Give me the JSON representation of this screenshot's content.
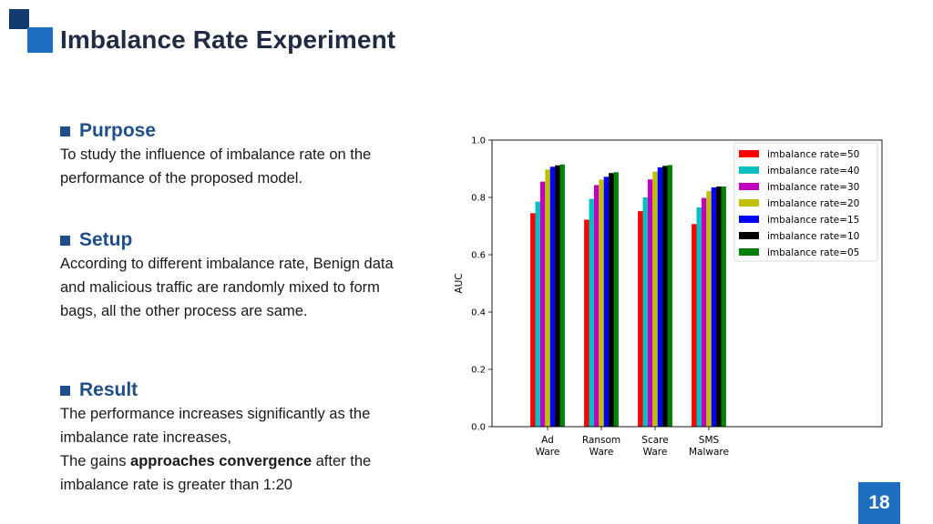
{
  "title": "Imbalance Rate Experiment",
  "sections": [
    {
      "title": "Purpose",
      "lines": [
        "To study the influence of imbalance rate on the",
        "performance of the proposed model."
      ]
    },
    {
      "title": "Setup",
      "lines": [
        "According to different imbalance rate, Benign data",
        "and malicious traffic are randomly mixed to form",
        "bags, all the other process are same."
      ]
    },
    {
      "title": "Result",
      "lines": [
        "The performance increases significantly as the",
        "imbalance rate increases,"
      ],
      "line3_before": "The gains ",
      "line3_bold": "approaches convergence",
      "line3_after": " after the",
      "line4": "imbalance rate is greater than 1:20"
    }
  ],
  "page_number": "18",
  "colors": {
    "title": "#1f2a44",
    "accent": "#1f4e8c",
    "brand": "#1e6ec0"
  },
  "chart_data": {
    "type": "bar",
    "categories": [
      [
        "Ad",
        "Ware"
      ],
      [
        "Ransom",
        "Ware"
      ],
      [
        "Scare",
        "Ware"
      ],
      [
        "SMS",
        "Malware"
      ]
    ],
    "ylabel": "AUC",
    "xlabel": "",
    "ylim": [
      0,
      1.0
    ],
    "yticks": [
      "0.0",
      "0.2",
      "0.4",
      "0.6",
      "0.8",
      "1.0"
    ],
    "grid": false,
    "legend_position": "top-right",
    "series": [
      {
        "name": "imbalance rate=50",
        "color": "#ff0000",
        "values": [
          0.745,
          0.722,
          0.752,
          0.707
        ]
      },
      {
        "name": "imbalance rate=40",
        "color": "#00c0c0",
        "values": [
          0.785,
          0.795,
          0.8,
          0.765
        ]
      },
      {
        "name": "imbalance rate=30",
        "color": "#c000c0",
        "values": [
          0.855,
          0.843,
          0.863,
          0.798
        ]
      },
      {
        "name": "imbalance rate=20",
        "color": "#c0c000",
        "values": [
          0.897,
          0.862,
          0.89,
          0.822
        ]
      },
      {
        "name": "imbalance rate=15",
        "color": "#0000ff",
        "values": [
          0.907,
          0.872,
          0.905,
          0.835
        ]
      },
      {
        "name": "imbalance rate=10",
        "color": "#000000",
        "values": [
          0.912,
          0.885,
          0.91,
          0.838
        ]
      },
      {
        "name": "imbalance rate=05",
        "color": "#008000",
        "values": [
          0.915,
          0.888,
          0.913,
          0.838
        ]
      }
    ]
  }
}
